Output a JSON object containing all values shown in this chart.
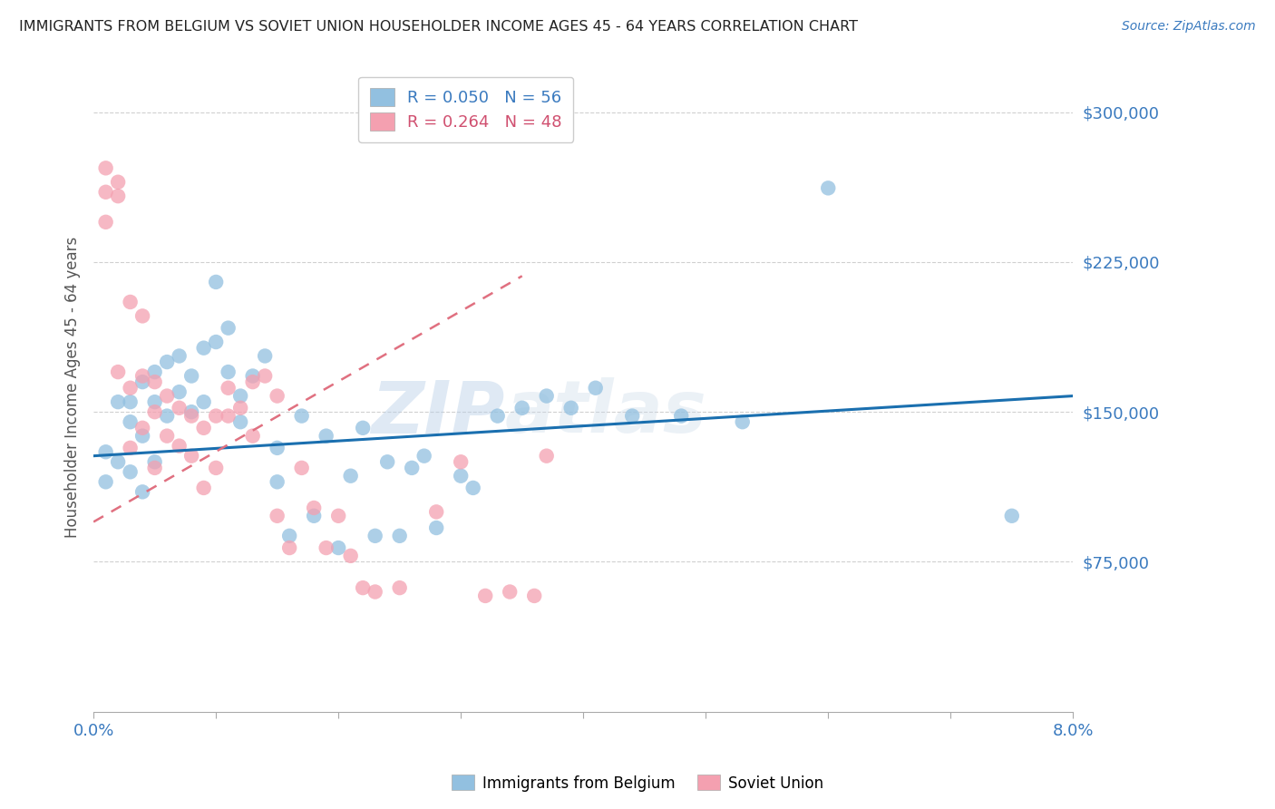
{
  "title": "IMMIGRANTS FROM BELGIUM VS SOVIET UNION HOUSEHOLDER INCOME AGES 45 - 64 YEARS CORRELATION CHART",
  "source": "Source: ZipAtlas.com",
  "ylabel": "Householder Income Ages 45 - 64 years",
  "xlim": [
    0.0,
    0.08
  ],
  "ylim": [
    0,
    325000
  ],
  "yticks": [
    75000,
    150000,
    225000,
    300000
  ],
  "ytick_labels": [
    "$75,000",
    "$150,000",
    "$225,000",
    "$300,000"
  ],
  "belgium_color": "#92c0e0",
  "soviet_color": "#f4a0b0",
  "belgium_line_color": "#1a6faf",
  "soviet_line_color": "#e07080",
  "belgium_R": "0.050",
  "belgium_N": "56",
  "soviet_R": "0.264",
  "soviet_N": "48",
  "watermark_zip": "ZIP",
  "watermark_atlas": "atlas",
  "belgium_points_x": [
    0.001,
    0.001,
    0.002,
    0.002,
    0.003,
    0.003,
    0.003,
    0.004,
    0.004,
    0.004,
    0.005,
    0.005,
    0.005,
    0.006,
    0.006,
    0.007,
    0.007,
    0.008,
    0.008,
    0.009,
    0.009,
    0.01,
    0.01,
    0.011,
    0.011,
    0.012,
    0.012,
    0.013,
    0.014,
    0.015,
    0.015,
    0.016,
    0.017,
    0.018,
    0.019,
    0.02,
    0.021,
    0.022,
    0.023,
    0.024,
    0.025,
    0.026,
    0.027,
    0.028,
    0.03,
    0.031,
    0.033,
    0.035,
    0.037,
    0.039,
    0.041,
    0.044,
    0.048,
    0.053,
    0.06,
    0.075
  ],
  "belgium_points_y": [
    130000,
    115000,
    155000,
    125000,
    155000,
    145000,
    120000,
    165000,
    138000,
    110000,
    170000,
    155000,
    125000,
    175000,
    148000,
    178000,
    160000,
    168000,
    150000,
    182000,
    155000,
    215000,
    185000,
    192000,
    170000,
    158000,
    145000,
    168000,
    178000,
    115000,
    132000,
    88000,
    148000,
    98000,
    138000,
    82000,
    118000,
    142000,
    88000,
    125000,
    88000,
    122000,
    128000,
    92000,
    118000,
    112000,
    148000,
    152000,
    158000,
    152000,
    162000,
    148000,
    148000,
    145000,
    262000,
    98000
  ],
  "soviet_points_x": [
    0.001,
    0.001,
    0.001,
    0.002,
    0.002,
    0.002,
    0.003,
    0.003,
    0.003,
    0.004,
    0.004,
    0.004,
    0.005,
    0.005,
    0.005,
    0.006,
    0.006,
    0.007,
    0.007,
    0.008,
    0.008,
    0.009,
    0.009,
    0.01,
    0.01,
    0.011,
    0.011,
    0.012,
    0.013,
    0.013,
    0.014,
    0.015,
    0.015,
    0.016,
    0.017,
    0.018,
    0.019,
    0.02,
    0.021,
    0.022,
    0.023,
    0.025,
    0.028,
    0.03,
    0.032,
    0.034,
    0.036,
    0.037
  ],
  "soviet_points_y": [
    272000,
    260000,
    245000,
    265000,
    258000,
    170000,
    205000,
    162000,
    132000,
    198000,
    168000,
    142000,
    165000,
    150000,
    122000,
    158000,
    138000,
    152000,
    133000,
    148000,
    128000,
    142000,
    112000,
    148000,
    122000,
    162000,
    148000,
    152000,
    165000,
    138000,
    168000,
    158000,
    98000,
    82000,
    122000,
    102000,
    82000,
    98000,
    78000,
    62000,
    60000,
    62000,
    100000,
    125000,
    58000,
    60000,
    58000,
    128000
  ],
  "bel_trend_x": [
    0.0,
    0.08
  ],
  "bel_trend_y": [
    128000,
    158000
  ],
  "sov_trend_x": [
    0.0,
    0.035
  ],
  "sov_trend_y": [
    95000,
    218000
  ]
}
